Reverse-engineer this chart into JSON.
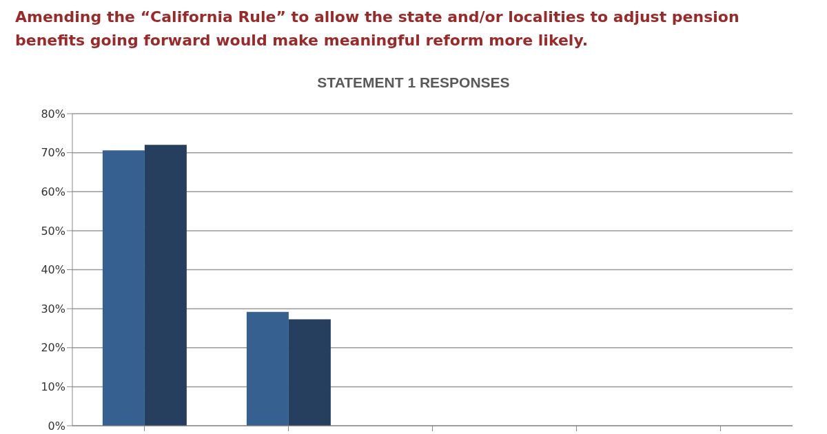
{
  "chart_data": {
    "type": "bar",
    "title": "Amending the “California Rule” to allow the state and/or localities to adjust pension benefits going forward would make meaningful reform more likely.",
    "subtitle": "STATEMENT 1 RESPONSES",
    "categories": [
      null,
      null,
      null,
      null,
      null
    ],
    "series": [
      {
        "color": "#36608f",
        "values": [
          70.6,
          29.2,
          null,
          null,
          null
        ]
      },
      {
        "color": "#263f5f",
        "values": [
          72.0,
          27.3,
          null,
          null,
          null
        ]
      }
    ],
    "ylim": [
      0,
      80
    ],
    "yticks": [
      {
        "value": 0,
        "label": "0%"
      },
      {
        "value": 10,
        "label": "10%"
      },
      {
        "value": 20,
        "label": "20%"
      },
      {
        "value": 30,
        "label": "30%"
      },
      {
        "value": 40,
        "label": "40%"
      },
      {
        "value": 50,
        "label": "50%"
      },
      {
        "value": 60,
        "label": "60%"
      },
      {
        "value": 70,
        "label": "70%"
      },
      {
        "value": 80,
        "label": "80%"
      }
    ],
    "grid": "y",
    "legend": false
  }
}
